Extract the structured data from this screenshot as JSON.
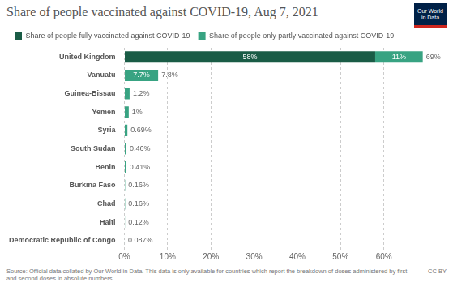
{
  "chart_data": {
    "type": "bar",
    "title": "Share of people vaccinated against COVID-19, Aug 7, 2021",
    "orientation": "horizontal",
    "stacked": true,
    "data_labels": true,
    "grid": true,
    "legend": "top",
    "categories": [
      "United Kingdom",
      "Vanuatu",
      "Guinea-Bissau",
      "Yemen",
      "Syria",
      "South Sudan",
      "Benin",
      "Burkina Faso",
      "Chad",
      "Haiti",
      "Democratic Republic of Congo"
    ],
    "series": [
      {
        "name": "Share of people fully vaccinated against COVID-19",
        "color": "#1a5c46",
        "values": [
          58,
          0.1,
          0,
          0,
          0,
          0,
          0,
          0,
          0,
          0,
          0
        ],
        "value_labels": [
          "58%",
          null,
          null,
          null,
          null,
          null,
          null,
          null,
          null,
          null,
          null
        ]
      },
      {
        "name": "Share of people only partly vaccinated against COVID-19",
        "color": "#38a382",
        "values": [
          11,
          7.7,
          1.2,
          1,
          0.69,
          0.46,
          0.41,
          0.16,
          0.16,
          0.12,
          0.087
        ],
        "value_labels": [
          "11%",
          "7.7%",
          null,
          null,
          null,
          null,
          null,
          null,
          null,
          null,
          null
        ]
      }
    ],
    "totals": [
      69,
      7.8,
      1.2,
      1,
      0.69,
      0.46,
      0.41,
      0.16,
      0.16,
      0.12,
      0.087
    ],
    "total_labels": [
      "69%",
      "7.8%",
      "1.2%",
      "1%",
      "0.69%",
      "0.46%",
      "0.41%",
      "0.16%",
      "0.16%",
      "0.12%",
      "0.087%"
    ],
    "xlim": [
      0,
      70
    ],
    "xticks": [
      {
        "value": 0,
        "label": "0%"
      },
      {
        "value": 10,
        "label": "10%"
      },
      {
        "value": 20,
        "label": "20%"
      },
      {
        "value": 30,
        "label": "30%"
      },
      {
        "value": 40,
        "label": "40%"
      },
      {
        "value": 50,
        "label": "50%"
      },
      {
        "value": 60,
        "label": "60%"
      }
    ]
  },
  "logo": "Our World in Data",
  "source": "Source: Official data collated by Our World in Data. This data is only available for countries which report the breakdown of doses administered by first and second doses in absolute numbers.",
  "license": "CC BY"
}
